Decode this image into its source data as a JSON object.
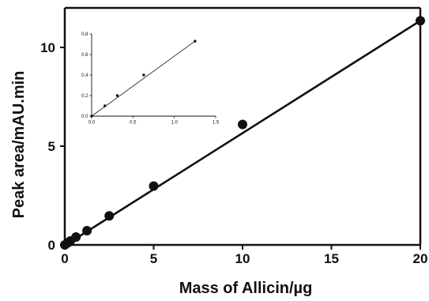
{
  "chart_data": [
    {
      "type": "scatter",
      "title": "",
      "xlabel": "Mass of Allicin/µg",
      "ylabel": "Peak area/mAU.min",
      "xlim": [
        0,
        20
      ],
      "ylim": [
        0,
        12
      ],
      "x_ticks": [
        0,
        5,
        10,
        15,
        20
      ],
      "y_ticks": [
        0,
        5,
        10
      ],
      "x_tick_labels": [
        "0",
        "5",
        "10",
        "15",
        "20"
      ],
      "y_tick_labels": [
        "0",
        "5",
        "10"
      ],
      "grid": false,
      "legend": "none",
      "series": [
        {
          "x": [
            0,
            0.16,
            0.31,
            0.63,
            1.25,
            2.5,
            5,
            10,
            20
          ],
          "y": [
            0,
            0.1,
            0.2,
            0.4,
            0.72,
            1.47,
            2.98,
            6.1,
            11.35
          ],
          "fit_line": {
            "x": [
              0,
              20
            ],
            "y": [
              -0.03,
              11.35
            ]
          },
          "color": "#111111"
        }
      ]
    },
    {
      "type": "scatter",
      "title": "",
      "xlabel": "",
      "ylabel": "",
      "xlim": [
        0,
        1.5
      ],
      "ylim": [
        0,
        0.8
      ],
      "x_ticks": [
        0,
        0.5,
        1,
        1.5
      ],
      "y_ticks": [
        0,
        0.2,
        0.4,
        0.6,
        0.8
      ],
      "x_tick_labels": [
        "0.0",
        "0.5",
        "1.0",
        "1.5"
      ],
      "y_tick_labels": [
        "0.0",
        "0.2",
        "0.4",
        "0.6",
        "0.8"
      ],
      "grid": false,
      "legend": "none",
      "series": [
        {
          "x": [
            0,
            0.16,
            0.31,
            0.63,
            1.25
          ],
          "y": [
            0,
            0.1,
            0.2,
            0.4,
            0.73
          ],
          "fit_line": {
            "x": [
              0,
              1.25
            ],
            "y": [
              0,
              0.73
            ]
          },
          "color": "#111111"
        }
      ]
    }
  ]
}
